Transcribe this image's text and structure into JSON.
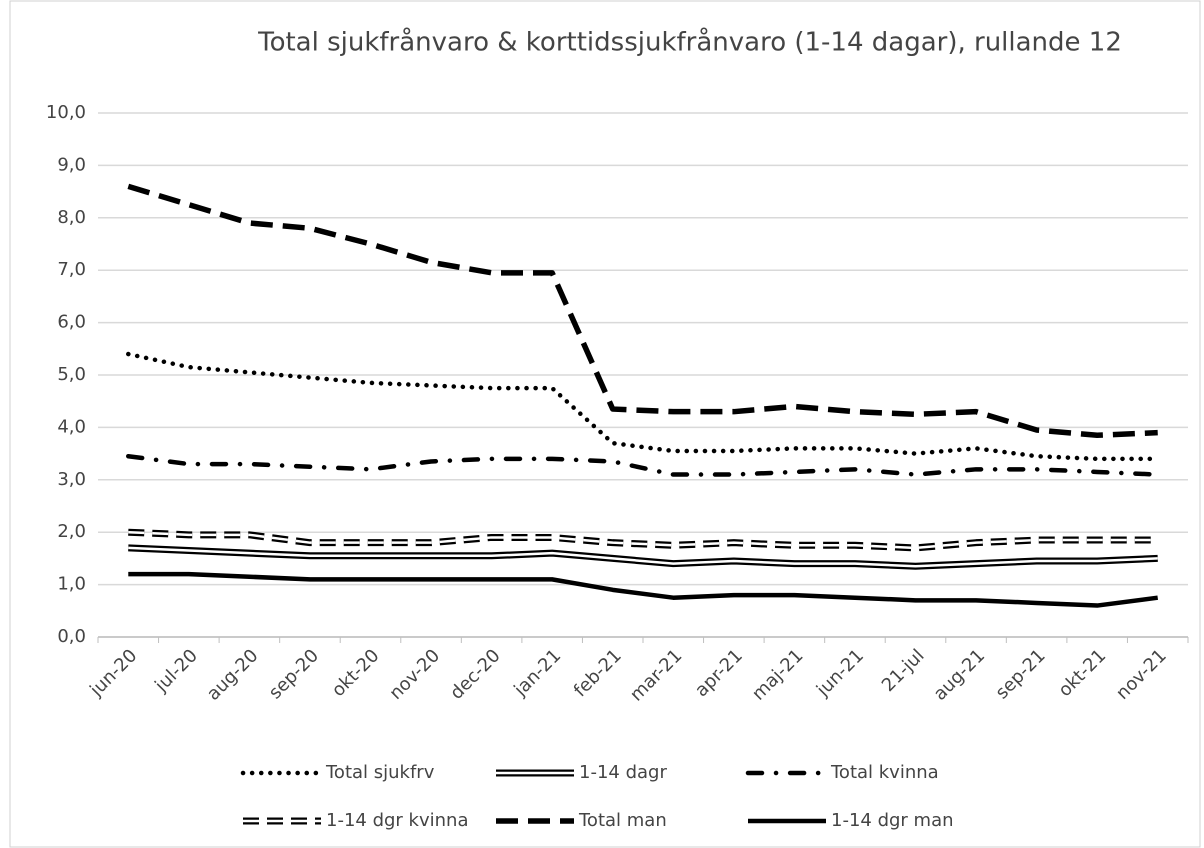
{
  "chart_data": {
    "type": "line",
    "title": "Total sjukfrånvaro & korttidssjukfrånvaro (1-14 dagar), rullande 12",
    "categories": [
      "jun-20",
      "jul-20",
      "aug-20",
      "sep-20",
      "okt-20",
      "nov-20",
      "dec-20",
      "jan-21",
      "feb-21",
      "mar-21",
      "apr-21",
      "maj-21",
      "jun-21",
      "21-jul",
      "aug-21",
      "sep-21",
      "okt-21",
      "nov-21"
    ],
    "series": [
      {
        "name": "Total sjukfrv",
        "color": "#000000",
        "style": "dotted",
        "values": [
          5.4,
          5.15,
          5.05,
          4.95,
          4.85,
          4.8,
          4.75,
          4.75,
          3.7,
          3.55,
          3.55,
          3.6,
          3.6,
          3.5,
          3.6,
          3.45,
          3.4,
          3.4
        ]
      },
      {
        "name": "1-14 dagr",
        "color": "#000000",
        "style": "double",
        "values": [
          1.7,
          1.65,
          1.6,
          1.55,
          1.55,
          1.55,
          1.55,
          1.6,
          1.5,
          1.4,
          1.45,
          1.4,
          1.4,
          1.35,
          1.4,
          1.45,
          1.45,
          1.5
        ]
      },
      {
        "name": "Total kvinna",
        "color": "#000000",
        "style": "dash-dot",
        "values": [
          3.45,
          3.3,
          3.3,
          3.25,
          3.2,
          3.35,
          3.4,
          3.4,
          3.35,
          3.1,
          3.1,
          3.15,
          3.2,
          3.1,
          3.2,
          3.2,
          3.15,
          3.1
        ]
      },
      {
        "name": "1-14 dgr kvinna",
        "color": "#000000",
        "style": "double-dash",
        "values": [
          2.0,
          1.95,
          1.95,
          1.8,
          1.8,
          1.8,
          1.9,
          1.9,
          1.8,
          1.75,
          1.8,
          1.75,
          1.75,
          1.7,
          1.8,
          1.85,
          1.85,
          1.85
        ]
      },
      {
        "name": "Total man",
        "color": "#000000",
        "style": "dashed",
        "values": [
          8.6,
          8.25,
          7.9,
          7.8,
          7.5,
          7.15,
          6.95,
          6.95,
          4.35,
          4.3,
          4.3,
          4.4,
          4.3,
          4.25,
          4.3,
          3.95,
          3.85,
          3.9
        ]
      },
      {
        "name": "1-14 dgr man",
        "color": "#000000",
        "style": "solid",
        "values": [
          1.2,
          1.2,
          1.15,
          1.1,
          1.1,
          1.1,
          1.1,
          1.1,
          0.9,
          0.75,
          0.8,
          0.8,
          0.75,
          0.7,
          0.7,
          0.65,
          0.6,
          0.75
        ]
      }
    ],
    "ylim": [
      0,
      10
    ],
    "yticks": [
      {
        "value": 0,
        "label": "0,0"
      },
      {
        "value": 1,
        "label": "1,0"
      },
      {
        "value": 2,
        "label": "2,0"
      },
      {
        "value": 3,
        "label": "3,0"
      },
      {
        "value": 4,
        "label": "4,0"
      },
      {
        "value": 5,
        "label": "5,0"
      },
      {
        "value": 6,
        "label": "6,0"
      },
      {
        "value": 7,
        "label": "7,0"
      },
      {
        "value": 8,
        "label": "8,0"
      },
      {
        "value": 9,
        "label": "9,0"
      },
      {
        "value": 10,
        "label": "10,0"
      }
    ],
    "grid": true,
    "legend": "bottom"
  }
}
